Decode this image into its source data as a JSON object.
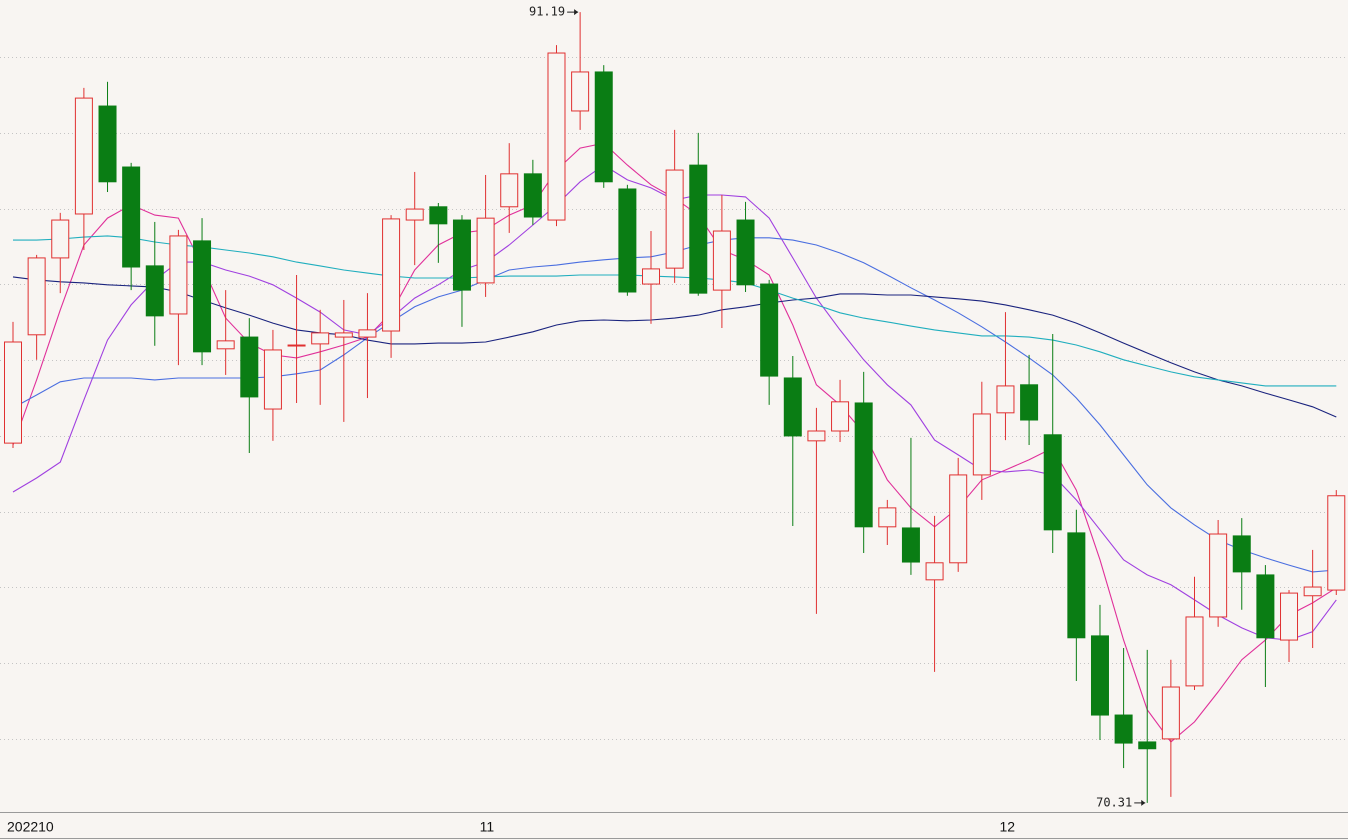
{
  "chart_data": {
    "type": "candlestick",
    "categories": [
      "202210",
      null,
      null,
      null,
      null,
      null,
      null,
      null,
      null,
      null,
      null,
      null,
      null,
      null,
      null,
      null,
      null,
      null,
      null,
      null,
      "11",
      null,
      null,
      null,
      null,
      null,
      null,
      null,
      null,
      null,
      null,
      null,
      null,
      null,
      null,
      null,
      null,
      null,
      null,
      null,
      null,
      null,
      "12",
      null,
      null,
      null,
      null,
      null,
      null,
      null,
      null,
      null,
      null,
      null,
      null,
      null,
      null
    ],
    "open": [
      79.81,
      82.67,
      84.7,
      85.86,
      88.71,
      87.1,
      84.49,
      83.22,
      85.15,
      82.3,
      82.61,
      80.71,
      82.38,
      82.43,
      82.61,
      82.61,
      82.77,
      85.7,
      86.05,
      85.7,
      84.04,
      86.05,
      86.92,
      85.7,
      88.58,
      89.61,
      86.52,
      84.01,
      84.43,
      87.15,
      83.85,
      85.7,
      84.01,
      81.53,
      79.87,
      80.13,
      80.87,
      77.6,
      77.57,
      76.2,
      76.65,
      78.97,
      80.61,
      81.35,
      80.03,
      77.44,
      74.72,
      72.63,
      71.92,
      72.0,
      73.4,
      75.22,
      77.36,
      76.33,
      74.61,
      75.78,
      75.93
    ],
    "high": [
      83.01,
      84.78,
      85.89,
      89.19,
      89.35,
      87.21,
      85.65,
      85.44,
      85.75,
      83.85,
      83.11,
      82.8,
      84.25,
      83.33,
      83.59,
      83.77,
      85.83,
      86.97,
      86.15,
      85.83,
      86.89,
      87.73,
      87.29,
      90.32,
      91.19,
      89.79,
      86.63,
      85.41,
      88.08,
      88.0,
      86.36,
      86.18,
      84.12,
      82.11,
      80.74,
      81.48,
      81.69,
      78.31,
      79.95,
      77.89,
      79.42,
      81.43,
      83.27,
      82.14,
      82.69,
      78.05,
      75.54,
      74.4,
      74.35,
      74.09,
      76.28,
      77.78,
      77.83,
      76.59,
      75.93,
      76.99,
      78.57
    ],
    "low": [
      79.68,
      82.01,
      83.77,
      84.91,
      86.44,
      83.85,
      82.38,
      81.87,
      81.87,
      81.61,
      79.55,
      79.87,
      80.87,
      80.82,
      80.37,
      81.0,
      82.06,
      84.51,
      84.57,
      82.88,
      83.67,
      85.36,
      85.57,
      85.54,
      88.08,
      86.55,
      83.7,
      82.96,
      84.04,
      83.7,
      82.85,
      83.8,
      80.82,
      77.62,
      75.3,
      79.84,
      76.91,
      77.12,
      76.33,
      73.77,
      76.41,
      78.31,
      79.89,
      79.76,
      76.91,
      73.53,
      71.97,
      71.23,
      70.31,
      70.47,
      73.29,
      74.96,
      75.41,
      73.37,
      74.03,
      74.4,
      75.8
    ],
    "close": [
      82.48,
      84.7,
      85.7,
      88.92,
      86.71,
      84.46,
      83.17,
      85.28,
      82.22,
      82.51,
      81.03,
      82.27,
      82.4,
      82.72,
      82.72,
      82.8,
      85.73,
      85.99,
      85.6,
      83.85,
      85.75,
      86.92,
      85.78,
      90.11,
      89.61,
      86.71,
      83.8,
      84.41,
      87.02,
      83.77,
      85.41,
      83.99,
      81.58,
      80.0,
      80.13,
      80.9,
      77.6,
      78.1,
      76.67,
      76.65,
      78.97,
      80.58,
      81.32,
      80.42,
      77.52,
      74.67,
      72.63,
      71.89,
      71.74,
      73.37,
      75.22,
      77.41,
      76.41,
      74.67,
      75.85,
      76.01,
      78.42
    ],
    "up_color": "#e03030",
    "down_color": "#0a7d14",
    "series": [
      {
        "color": "#e0309a",
        "values": [
          79.76,
          81.48,
          83.33,
          85.04,
          85.75,
          86.1,
          85.83,
          85.75,
          84.51,
          83.11,
          82.45,
          82.14,
          82.06,
          82.22,
          82.4,
          82.61,
          83.25,
          84.38,
          85.04,
          85.36,
          85.44,
          85.83,
          86.1,
          87.02,
          87.6,
          87.73,
          87.15,
          86.63,
          86.28,
          85.83,
          84.91,
          84.65,
          84.25,
          82.93,
          81.35,
          80.82,
          80.08,
          78.84,
          78.1,
          77.6,
          78.1,
          78.84,
          79.1,
          79.37,
          79.68,
          78.57,
          76.73,
          74.61,
          72.77,
          71.92,
          72.45,
          73.24,
          74.09,
          74.61,
          75.27,
          75.59,
          75.99
        ]
      },
      {
        "color": "#a040e0",
        "values": [
          78.52,
          78.89,
          79.31,
          80.95,
          82.53,
          83.46,
          84.12,
          84.59,
          84.59,
          84.38,
          84.22,
          83.99,
          83.64,
          83.27,
          82.8,
          82.67,
          83.11,
          83.64,
          83.99,
          84.38,
          84.59,
          85.04,
          85.57,
          86.1,
          86.71,
          87.15,
          86.76,
          86.55,
          86.23,
          86.36,
          86.36,
          86.31,
          85.75,
          84.7,
          83.64,
          82.8,
          82.01,
          81.35,
          80.82,
          79.89,
          79.5,
          79.1,
          79.05,
          79.1,
          78.97,
          78.31,
          77.52,
          76.73,
          76.33,
          76.07,
          75.67,
          75.27,
          74.93,
          74.67,
          74.61,
          74.83,
          75.67
        ]
      },
      {
        "color": "#4a6ee0",
        "values": [
          80.74,
          81.08,
          81.43,
          81.53,
          81.53,
          81.53,
          81.48,
          81.53,
          81.53,
          81.53,
          81.53,
          81.56,
          81.64,
          81.74,
          82.14,
          82.59,
          83.01,
          83.41,
          83.67,
          83.85,
          84.12,
          84.38,
          84.46,
          84.51,
          84.59,
          84.65,
          84.7,
          84.73,
          84.86,
          85.04,
          85.17,
          85.23,
          85.23,
          85.17,
          85.04,
          84.83,
          84.57,
          84.25,
          83.91,
          83.59,
          83.25,
          82.88,
          82.48,
          82.06,
          81.61,
          81.0,
          80.29,
          79.5,
          78.71,
          78.1,
          77.65,
          77.25,
          76.99,
          76.78,
          76.59,
          76.41,
          76.46
        ]
      },
      {
        "color": "#1a237e",
        "values": [
          84.2,
          84.12,
          84.07,
          84.04,
          83.99,
          83.96,
          83.93,
          83.8,
          83.59,
          83.38,
          83.19,
          82.98,
          82.8,
          82.72,
          82.67,
          82.53,
          82.43,
          82.43,
          82.45,
          82.45,
          82.48,
          82.61,
          82.75,
          82.93,
          83.04,
          83.06,
          83.04,
          83.06,
          83.11,
          83.19,
          83.33,
          83.41,
          83.51,
          83.59,
          83.64,
          83.75,
          83.75,
          83.72,
          83.72,
          83.67,
          83.62,
          83.56,
          83.46,
          83.33,
          83.19,
          82.98,
          82.72,
          82.45,
          82.19,
          81.93,
          81.69,
          81.48,
          81.32,
          81.13,
          80.95,
          80.77,
          80.5
        ]
      },
      {
        "color": "#20aebe",
        "values": [
          85.17,
          85.17,
          85.2,
          85.25,
          85.28,
          85.23,
          85.12,
          85.04,
          84.99,
          84.91,
          84.83,
          84.73,
          84.59,
          84.49,
          84.38,
          84.3,
          84.22,
          84.17,
          84.17,
          84.17,
          84.2,
          84.22,
          84.22,
          84.22,
          84.25,
          84.25,
          84.25,
          84.22,
          84.2,
          84.17,
          84.12,
          84.04,
          83.85,
          83.64,
          83.46,
          83.25,
          83.11,
          83.01,
          82.9,
          82.8,
          82.72,
          82.64,
          82.64,
          82.61,
          82.53,
          82.4,
          82.22,
          82.01,
          81.85,
          81.69,
          81.56,
          81.48,
          81.4,
          81.32,
          81.32,
          81.32,
          81.32
        ]
      }
    ],
    "ylim": [
      70.07,
      91.51
    ],
    "yticks": [
      72,
      74,
      76,
      78,
      80,
      82,
      84,
      86,
      88,
      90
    ],
    "grid": true
  }
}
